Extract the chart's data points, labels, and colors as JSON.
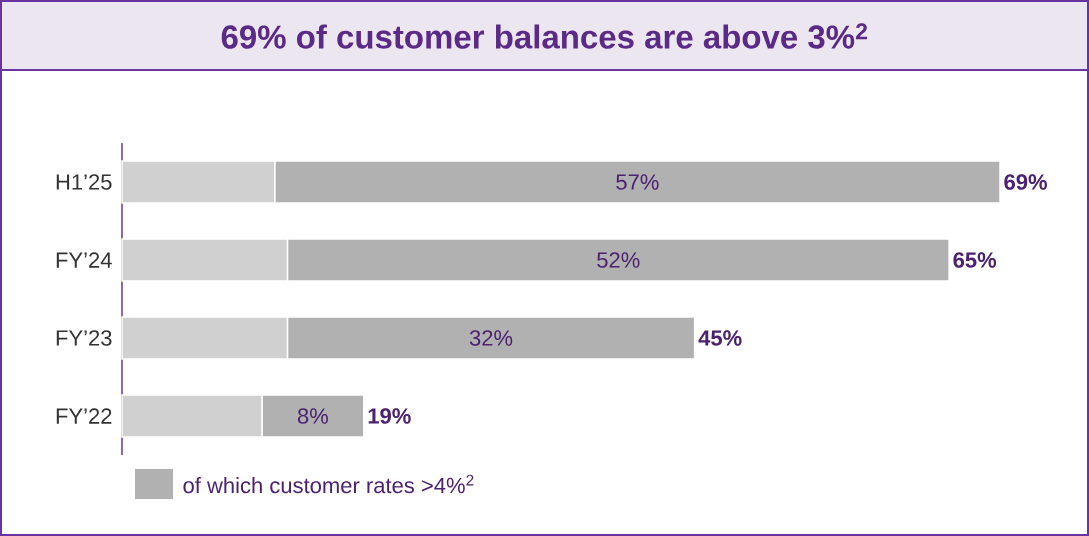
{
  "chart_data": {
    "type": "bar",
    "orientation": "horizontal",
    "stacked": true,
    "title": "69% of customer balances are above 3%$^{2}$",
    "categories": [
      "H1’25",
      "FY’24",
      "FY’23",
      "FY’22"
    ],
    "series": [
      {
        "color": "#d0d0d0",
        "values": [
          12,
          13,
          13,
          11
        ]
      },
      {
        "name": "of which customer rates >4%$^{2}$",
        "color": "#b1b1b1",
        "values": [
          57,
          52,
          32,
          8
        ],
        "value_labels": [
          "57%",
          "52%",
          "32%",
          "8%"
        ]
      }
    ],
    "totals": [
      "69%",
      "65%",
      "45%",
      "19%"
    ],
    "legend": "bottom"
  }
}
